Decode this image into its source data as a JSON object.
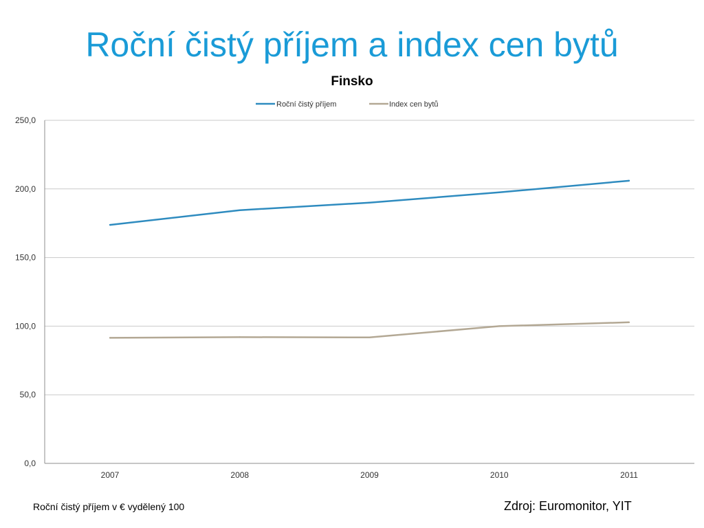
{
  "slide": {
    "title": "Roční čistý příjem a index cen bytů",
    "footnote": "Roční čistý příjem v € vydělený 100",
    "source": "Zdroj: Euromonitor, YIT"
  },
  "chart_data": {
    "type": "line",
    "title": "Finsko",
    "x": [
      "2007",
      "2008",
      "2009",
      "2010",
      "2011"
    ],
    "series": [
      {
        "name": "Roční čistý příjem",
        "color": "#2e8bbf",
        "values": [
          173.8,
          184.5,
          190.0,
          197.5,
          206.0
        ]
      },
      {
        "name": "Index cen bytů",
        "color": "#b3a894",
        "values": [
          91.5,
          92.0,
          91.8,
          100.0,
          102.8
        ]
      }
    ],
    "y_ticks": [
      "0,0",
      "50,0",
      "100,0",
      "150,0",
      "200,0",
      "250,0"
    ],
    "ylim": [
      0,
      250
    ],
    "grid": true,
    "legend": "top-center"
  }
}
